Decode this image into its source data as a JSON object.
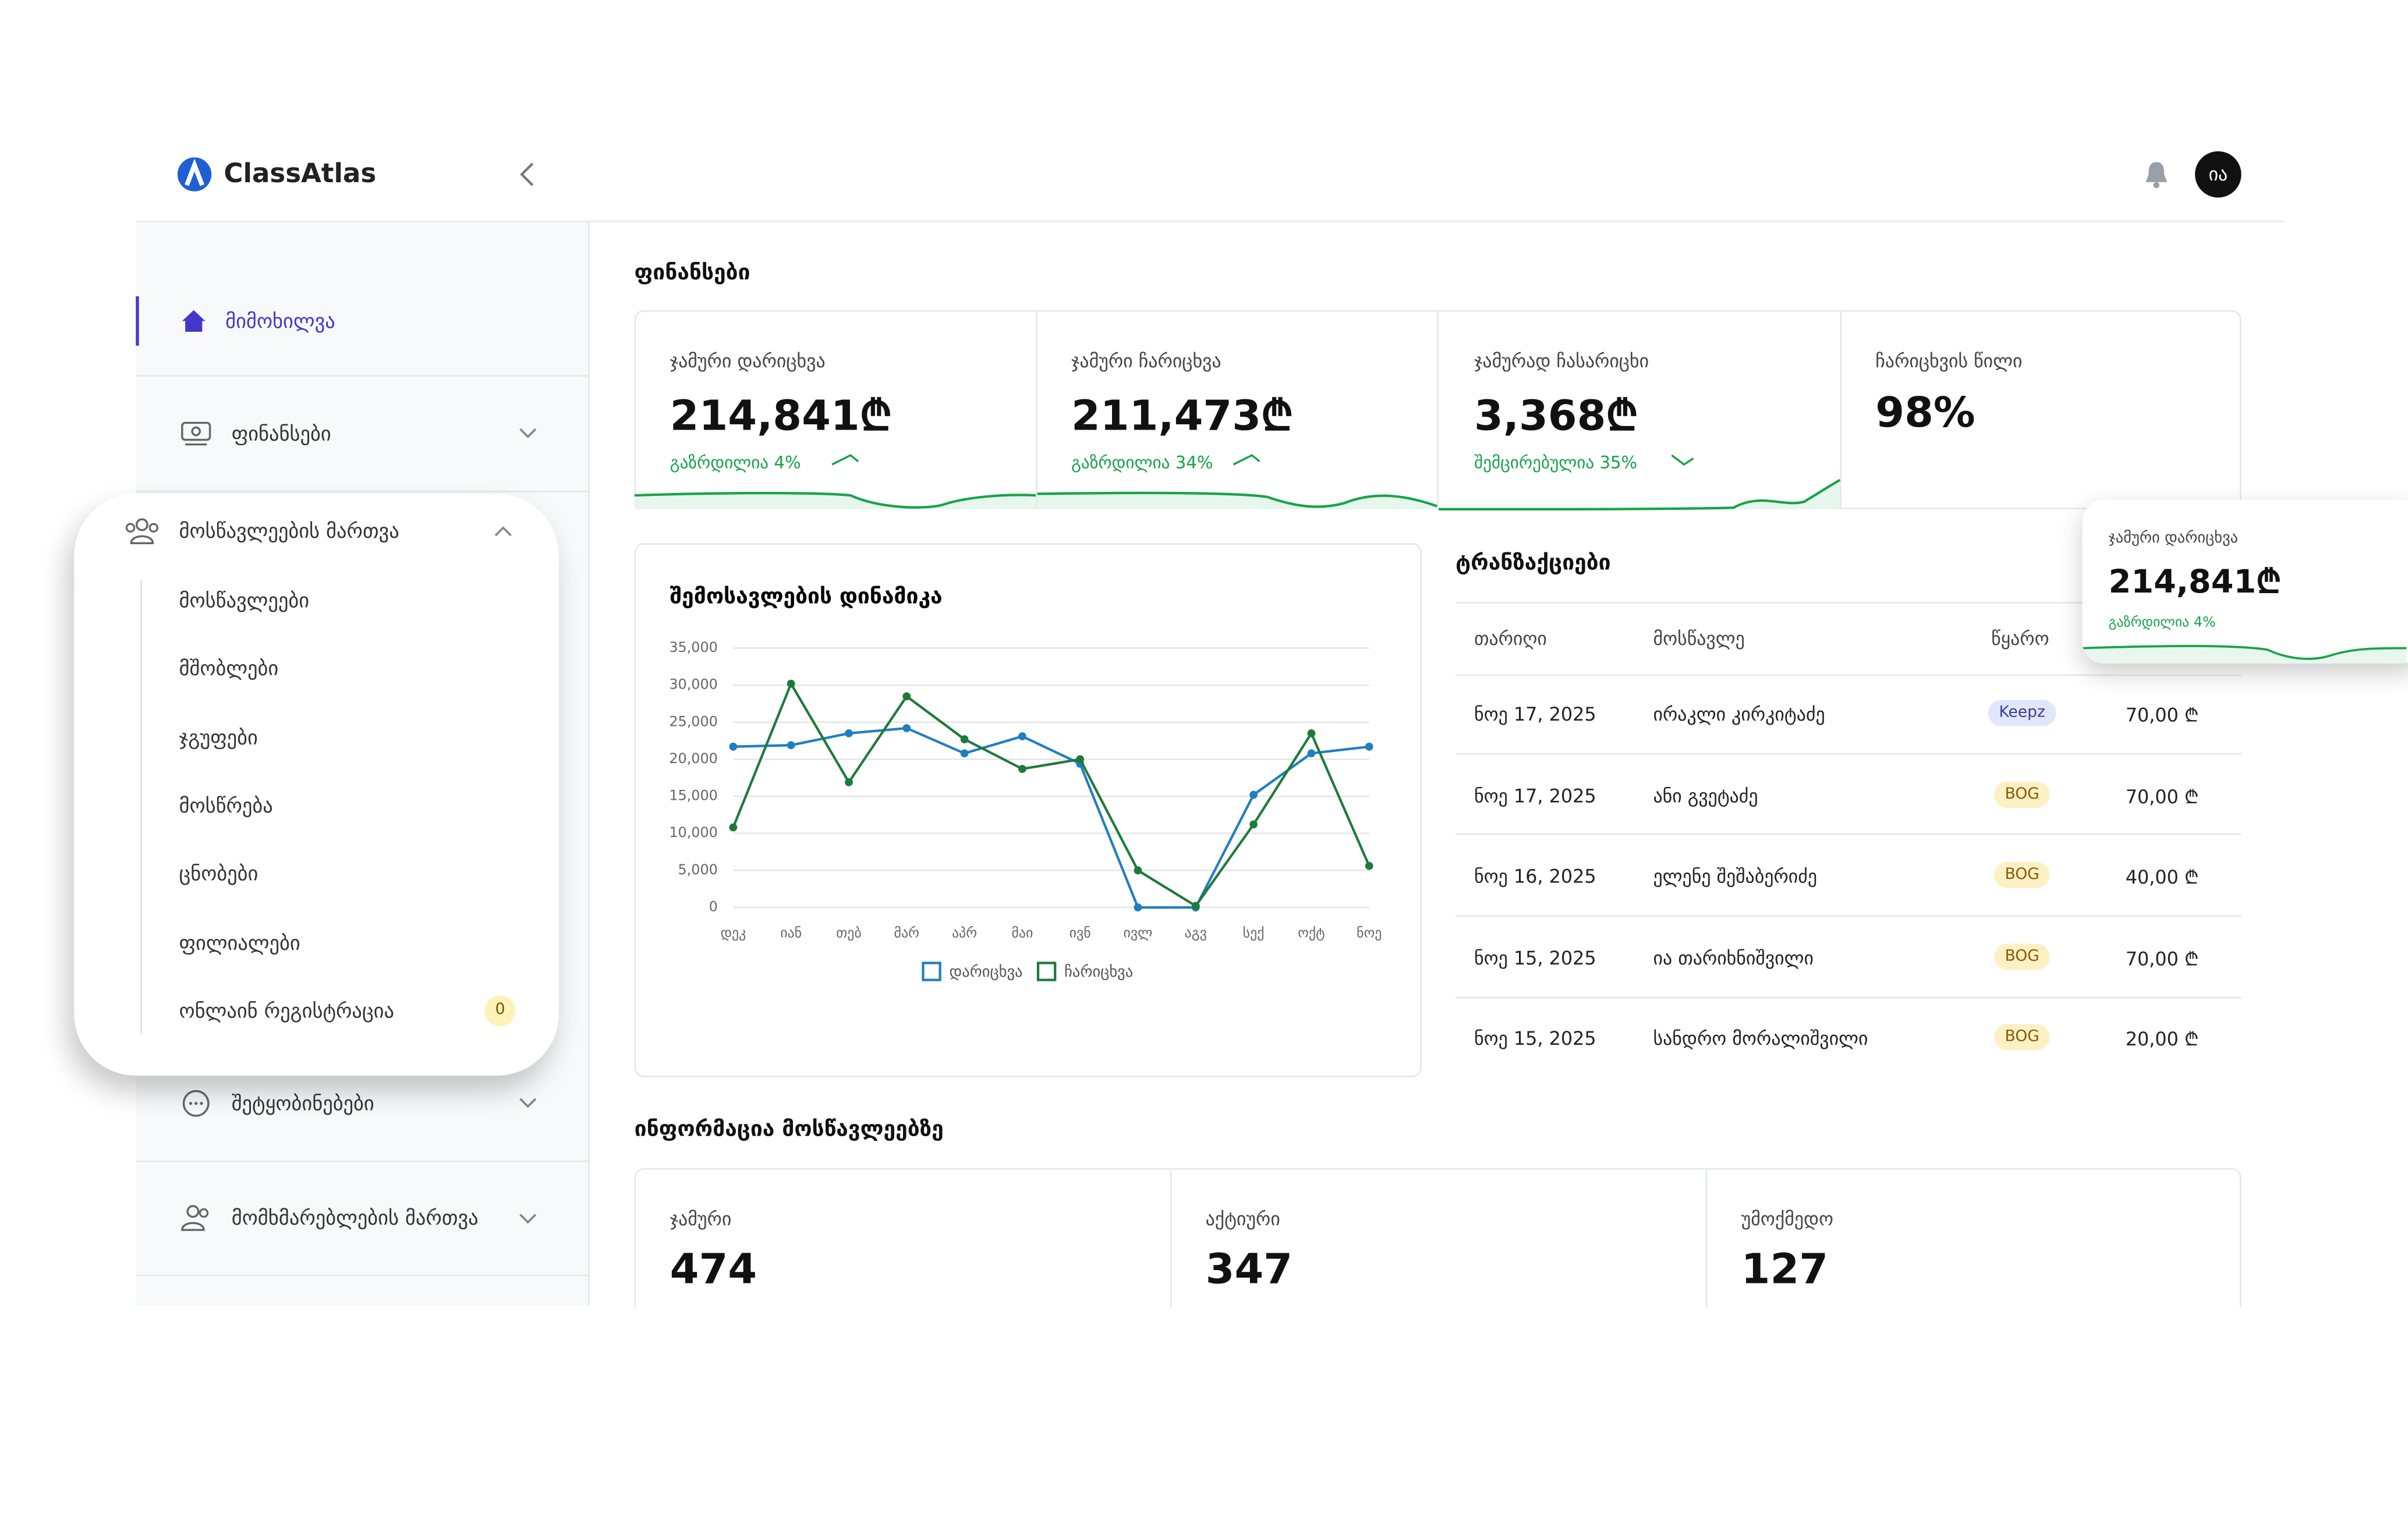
{
  "header": {
    "brand": "ClassAtlas",
    "avatar": "ია"
  },
  "sidebar": {
    "items": [
      "მიმოხილვა",
      "ფინანსები",
      "მოსწავლეების მართვა",
      "შეტყობინებები",
      "მომხმარებლების მართვა"
    ],
    "submenu": [
      "მოსწავლეები",
      "მშობლები",
      "ჯგუფები",
      "მოსწრება",
      "ცნობები",
      "ფილიალები",
      "ონლაინ რეგისტრაცია"
    ],
    "badge": 0
  },
  "finances": {
    "title": "ფინანსები",
    "cards": [
      {
        "label": "ჯამური დარიცხვა",
        "value": "214,841₾",
        "change": "გაზრდილია 4%"
      },
      {
        "label": "ჯამური ჩარიცხვა",
        "value": "211,473₾",
        "change": "გაზრდილია 34%"
      },
      {
        "label": "ჯამურად ჩასარიცხი",
        "value": "3,368₾",
        "change": "შემცირებულია 35%"
      },
      {
        "label": "ჩარიცხვის წილი",
        "value": "98%"
      }
    ]
  },
  "income_chart": {
    "type": "line",
    "title": "შემოსავლების დინამიკა",
    "categories": [
      "დეკ",
      "იან",
      "თებ",
      "მარ",
      "აპრ",
      "მაი",
      "ივნ",
      "ივლ",
      "აგვ",
      "სექ",
      "ოქტ",
      "ნოე"
    ],
    "series": [
      {
        "name": "დარიცხვა",
        "color": "#1f7fc0",
        "values": [
          21700,
          21900,
          23500,
          24200,
          20800,
          23100,
          19400,
          0,
          0,
          15200,
          20800,
          21700
        ]
      },
      {
        "name": "ჩარიცხვა",
        "color": "#1e7a3c",
        "values": [
          10800,
          30200,
          16900,
          28500,
          22700,
          18700,
          20000,
          5000,
          200,
          11200,
          23500,
          5600
        ]
      }
    ],
    "ylim": [
      0,
      35000
    ],
    "yticks": [
      0,
      {
        "value": 5000,
        "label": "5,000"
      },
      {
        "value": 10000,
        "label": "10,000"
      },
      {
        "value": 15000,
        "label": "15,000"
      },
      {
        "value": 20000,
        "label": "20,000"
      },
      {
        "value": 25000,
        "label": "25,000"
      },
      {
        "value": 30000,
        "label": "30,000"
      },
      {
        "value": 35000,
        "label": "35,000"
      }
    ],
    "grid": true
  },
  "transactions": {
    "title": "ტრანზაქციები",
    "columns": [
      "თარიღი",
      "მოსწავლე",
      "წყარო"
    ],
    "rows": [
      [
        "ნოე 17, 2025",
        "ირაკლი კირკიტაძე",
        "Keepz",
        "70,00 ₾"
      ],
      [
        "ნოე 17, 2025",
        "ანი გვეტაძე",
        "BOG",
        "70,00 ₾"
      ],
      [
        "ნოე 16, 2025",
        "ელენე შეშაბერიძე",
        "BOG",
        "40,00 ₾"
      ],
      [
        "ნოე 15, 2025",
        "ია თარიხნიშვილი",
        "BOG",
        "70,00 ₾"
      ],
      [
        "ნოე 15, 2025",
        "სანდრო მორალიშვილი",
        "BOG",
        "20,00 ₾"
      ]
    ]
  },
  "floating_card": {
    "label": "ჯამური დარიცხვა",
    "value": "214,841₾",
    "change": "გაზრდილია 4%"
  },
  "students": {
    "title": "ინფორმაცია მოსწავლეებზე",
    "cards": [
      {
        "label": "ჯამური",
        "value": 474
      },
      {
        "label": "აქტიური",
        "value": 347
      },
      {
        "label": "უმოქმედო",
        "value": 127
      }
    ]
  }
}
